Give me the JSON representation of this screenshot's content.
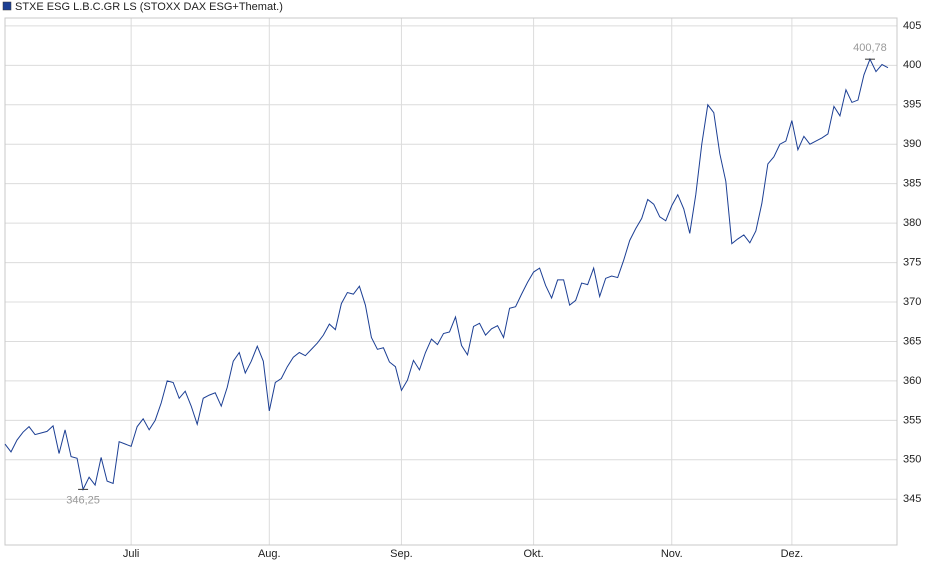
{
  "chart_data": {
    "type": "line",
    "title": "STXE ESG L.B.C.GR LS (STOXX DAX ESG+Themat.)",
    "series": [
      {
        "name": "STXE ESG L.B.C.GR LS (STOXX DAX ESG+Themat.)",
        "color": "#1c3f94",
        "values": [
          352,
          351,
          352.5,
          353.5,
          354.2,
          353.2,
          353.4,
          353.6,
          354.3,
          350.8,
          353.8,
          350.4,
          350.2,
          346.25,
          347.8,
          346.8,
          350.3,
          347.3,
          347,
          352.3,
          352,
          351.7,
          354.2,
          355.2,
          353.8,
          355,
          357.2,
          360,
          359.8,
          357.8,
          358.7,
          356.8,
          354.5,
          357.8,
          358.2,
          358.5,
          356.8,
          359.2,
          362.5,
          363.6,
          361,
          362.5,
          364.4,
          362.5,
          356.2,
          359.8,
          360.3,
          361.8,
          363,
          363.6,
          363.2,
          364,
          364.8,
          365.8,
          367.2,
          366.5,
          369.8,
          371.2,
          371,
          372,
          369.6,
          365.5,
          364,
          364.2,
          362.4,
          361.8,
          358.8,
          360.1,
          362.6,
          361.4,
          363.6,
          365.3,
          364.6,
          366,
          366.2,
          368.1,
          364.5,
          363.3,
          366.9,
          367.3,
          365.8,
          366.6,
          367,
          365.5,
          369.2,
          369.4,
          371,
          372.5,
          373.8,
          374.3,
          372.1,
          370.5,
          372.8,
          372.8,
          369.6,
          370.2,
          372.4,
          372.2,
          374.3,
          370.7,
          373,
          373.3,
          373.1,
          375.3,
          377.8,
          379.3,
          380.6,
          383,
          382.4,
          380.8,
          380.3,
          382.2,
          383.6,
          381.8,
          378.7,
          383.6,
          390,
          395,
          394,
          388.8,
          385.3,
          377.4,
          378,
          378.5,
          377.5,
          379,
          382.5,
          387.5,
          388.4,
          390,
          390.4,
          393,
          389.3,
          391,
          390,
          390.4,
          390.8,
          391.3,
          394.8,
          393.6,
          396.9,
          395.3,
          395.6,
          398.8,
          400.78,
          399.2,
          400.1,
          399.7
        ]
      }
    ],
    "annotations": [
      {
        "label": "346,25",
        "x": 13,
        "value": 346.25
      },
      {
        "label": "400,78",
        "x": 144,
        "value": 400.78
      }
    ],
    "xlim": [
      0,
      148.5
    ],
    "xticks": [
      {
        "value": 21,
        "label": "Juli"
      },
      {
        "value": 44,
        "label": "Aug."
      },
      {
        "value": 66,
        "label": "Sep."
      },
      {
        "value": 88,
        "label": "Okt."
      },
      {
        "value": 111,
        "label": "Nov."
      },
      {
        "value": 131,
        "label": "Dez."
      }
    ],
    "ylim": [
      339.2,
      406
    ],
    "yticks": [
      345,
      350,
      355,
      360,
      365,
      370,
      375,
      380,
      385,
      390,
      395,
      400,
      405
    ],
    "grid": true
  }
}
